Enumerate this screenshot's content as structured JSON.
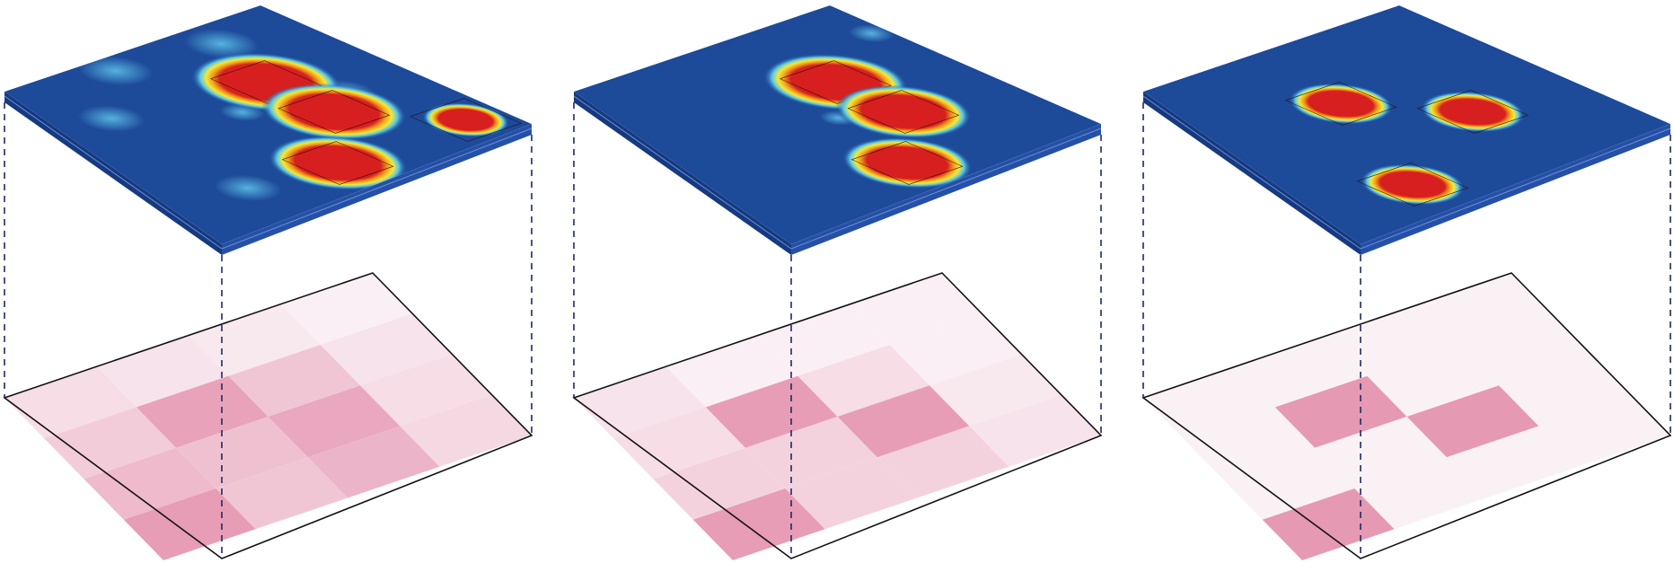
{
  "figure": {
    "panels": [
      {
        "grid_levels": [
          [
            0.05,
            0.15,
            0.2,
            0.25
          ],
          [
            0.1,
            0.4,
            0.65,
            0.55
          ],
          [
            0.15,
            0.7,
            0.45,
            0.4
          ],
          [
            0.2,
            0.35,
            0.5,
            0.75
          ]
        ],
        "field_blobs": [
          {
            "row": 1,
            "col": 1,
            "radius": 0.52
          },
          {
            "row": 1,
            "col": 2,
            "radius": 0.5
          },
          {
            "row": 2,
            "col": 3,
            "radius": 0.48
          },
          {
            "row": 0,
            "col": 3,
            "radius": 0.3
          }
        ],
        "halos": [
          {
            "u": 0.12,
            "v": 0.28,
            "r": 0.1
          },
          {
            "u": 0.08,
            "v": 0.65,
            "r": 0.1
          },
          {
            "u": 0.3,
            "v": 0.9,
            "r": 0.09
          },
          {
            "u": 0.55,
            "v": 0.25,
            "r": 0.08
          },
          {
            "u": 0.85,
            "v": 0.95,
            "r": 0.09
          },
          {
            "u": 0.48,
            "v": 0.58,
            "r": 0.06
          }
        ]
      },
      {
        "grid_levels": [
          [
            0.05,
            0.05,
            0.1,
            0.15
          ],
          [
            0.05,
            0.2,
            0.75,
            0.3
          ],
          [
            0.05,
            0.75,
            0.3,
            0.3
          ],
          [
            0.15,
            0.2,
            0.3,
            0.75
          ]
        ],
        "field_blobs": [
          {
            "row": 1,
            "col": 1,
            "radius": 0.5
          },
          {
            "row": 1,
            "col": 2,
            "radius": 0.47
          },
          {
            "row": 2,
            "col": 3,
            "radius": 0.45
          }
        ],
        "halos": [
          {
            "u": 0.2,
            "v": 0.05,
            "r": 0.06
          },
          {
            "u": 0.55,
            "v": 0.55,
            "r": 0.05
          }
        ]
      },
      {
        "grid_levels": [
          [
            0.03,
            0.03,
            0.03,
            0.03
          ],
          [
            0.03,
            0.03,
            0.78,
            0.03
          ],
          [
            0.03,
            0.78,
            0.03,
            0.03
          ],
          [
            0.03,
            0.03,
            0.03,
            0.78
          ]
        ],
        "field_blobs": [
          {
            "row": 1,
            "col": 2,
            "radius": 0.36
          },
          {
            "row": 2,
            "col": 1,
            "radius": 0.36
          },
          {
            "row": 3,
            "col": 3,
            "radius": 0.36
          }
        ],
        "halos": []
      }
    ],
    "colors": {
      "field_low": "#1d4a99",
      "field_high": "#d71f1f",
      "slab_side": "#153a82",
      "slab_under": "#2550a8",
      "grid_high": "#e07fa0",
      "grid_low": "#fbf5f8",
      "outline": "#111111",
      "guide": "#1e2a60"
    }
  }
}
